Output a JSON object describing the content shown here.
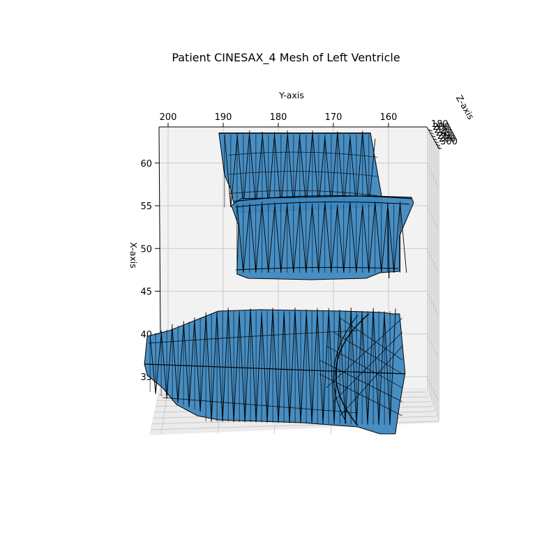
{
  "chart_data": {
    "type": "surface",
    "title": "Patient CINESAX_4 Mesh of Left Ventricle",
    "xlabel": "X-axis",
    "ylabel": "Y-axis",
    "zlabel": "Z-axis",
    "x_ticks": [
      60,
      55,
      50,
      45,
      40,
      35
    ],
    "y_ticks": [
      200,
      190,
      180,
      170,
      160
    ],
    "z_ticks": [
      180,
      200,
      220,
      240,
      260,
      280,
      300
    ],
    "xlim": [
      31,
      64
    ],
    "ylim": [
      203,
      155
    ],
    "grid": true,
    "colors": {
      "face": "#3d88c0",
      "edge": "#000000",
      "pane": "#f2f2f2",
      "grid": "#c8c8c8"
    },
    "series": [
      {
        "part": "upper segment",
        "x_range": [
          54.5,
          63.5
        ],
        "y_range": [
          189,
          162
        ]
      },
      {
        "part": "middle segment",
        "x_range": [
          47,
          56
        ],
        "y_range": [
          188,
          159
        ]
      },
      {
        "part": "lower segment",
        "x_range": [
          31,
          42.5
        ],
        "y_range": [
          201,
          158
        ]
      }
    ]
  }
}
